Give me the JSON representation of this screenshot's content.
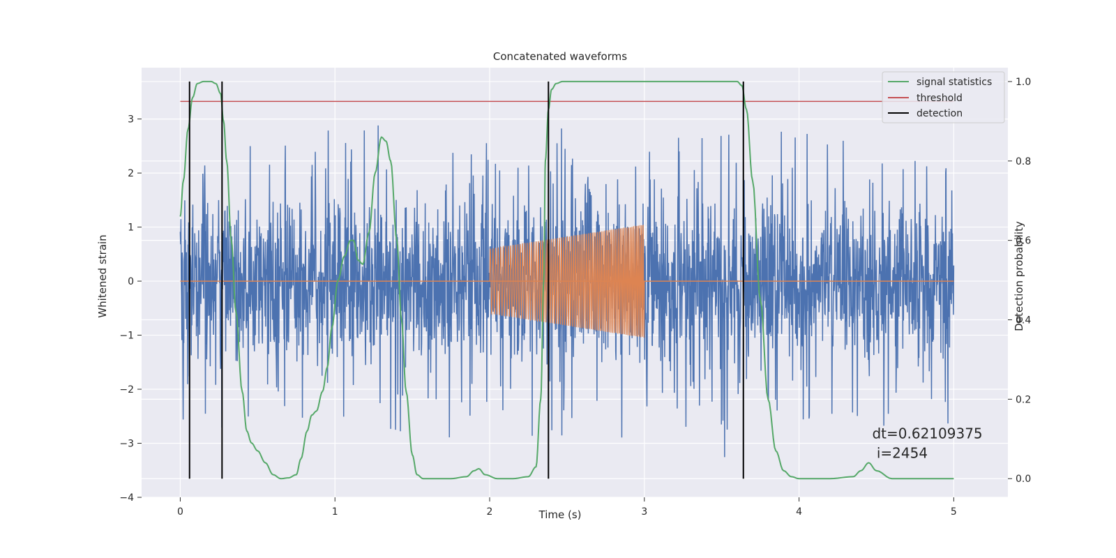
{
  "chart_data": {
    "type": "line",
    "title": "Concatenated waveforms",
    "xlabel": "Time (s)",
    "ylabel": "Whitened strain",
    "y2label": "Detection probability",
    "xlim": [
      -0.25,
      5.35
    ],
    "ylim": [
      -4.0,
      3.95
    ],
    "y2lim": [
      -0.047,
      1.035
    ],
    "xticks": [
      0,
      1,
      2,
      3,
      4,
      5
    ],
    "yticks": [
      -4,
      -3,
      -2,
      -1,
      0,
      1,
      2,
      3
    ],
    "y2ticks": [
      0.0,
      0.2,
      0.4,
      0.6,
      0.8,
      1.0
    ],
    "y2ticklabels": [
      "0.0",
      "0.2",
      "0.4",
      "0.6",
      "0.8",
      "1.0"
    ],
    "grid": true,
    "legend_position": "top-right",
    "legend": [
      {
        "label": "signal statistics",
        "color": "#55a868"
      },
      {
        "label": "threshold",
        "color": "#c44e52"
      },
      {
        "label": "detection",
        "color": "#000000"
      }
    ],
    "noise": {
      "name": "whitened strain",
      "color": "#4c72b0",
      "x_range": [
        0,
        5
      ],
      "std": 0.75,
      "typical_peak": 2.9,
      "max_peak": 3.6
    },
    "injected_signal": {
      "name": "injected waveform",
      "color": "#dd8452",
      "x_range": [
        2.0,
        3.0
      ],
      "amplitude_start": 0.6,
      "amplitude_end": 1.05,
      "zero_line": [
        0,
        5
      ]
    },
    "signal_statistics": {
      "axis": "y2",
      "x": [
        0.0,
        0.02,
        0.05,
        0.08,
        0.11,
        0.15,
        0.2,
        0.23,
        0.26,
        0.28,
        0.3,
        0.33,
        0.36,
        0.4,
        0.43,
        0.46,
        0.5,
        0.55,
        0.6,
        0.65,
        0.7,
        0.75,
        0.78,
        0.82,
        0.85,
        0.88,
        0.92,
        0.95,
        0.98,
        1.02,
        1.06,
        1.1,
        1.12,
        1.15,
        1.18,
        1.22,
        1.26,
        1.3,
        1.33,
        1.36,
        1.4,
        1.43,
        1.46,
        1.5,
        1.53,
        1.57,
        1.65,
        1.75,
        1.85,
        1.9,
        1.93,
        1.97,
        2.05,
        2.15,
        2.25,
        2.3,
        2.33,
        2.35,
        2.36,
        2.38,
        2.4,
        2.43,
        2.47,
        2.55,
        3.0,
        3.5,
        3.6,
        3.63,
        3.66,
        3.7,
        3.75,
        3.8,
        3.85,
        3.9,
        3.95,
        4.0,
        4.2,
        4.35,
        4.4,
        4.45,
        4.5,
        4.6,
        4.8,
        5.0
      ],
      "y": [
        0.66,
        0.75,
        0.88,
        0.96,
        0.995,
        1.0,
        1.0,
        0.995,
        0.97,
        0.9,
        0.8,
        0.6,
        0.42,
        0.22,
        0.12,
        0.09,
        0.07,
        0.04,
        0.01,
        0.0,
        0.002,
        0.01,
        0.05,
        0.12,
        0.16,
        0.17,
        0.22,
        0.28,
        0.38,
        0.5,
        0.56,
        0.6,
        0.6,
        0.55,
        0.54,
        0.62,
        0.77,
        0.86,
        0.85,
        0.8,
        0.6,
        0.4,
        0.22,
        0.06,
        0.01,
        0.0,
        0.0,
        0.0,
        0.005,
        0.02,
        0.025,
        0.01,
        0.0,
        0.0,
        0.005,
        0.03,
        0.2,
        0.5,
        0.8,
        0.93,
        0.98,
        0.995,
        1.0,
        1.0,
        1.0,
        1.0,
        1.0,
        0.99,
        0.93,
        0.75,
        0.45,
        0.2,
        0.07,
        0.02,
        0.005,
        0.0,
        0.0,
        0.005,
        0.02,
        0.04,
        0.02,
        0.0,
        0.0,
        0.0
      ]
    },
    "threshold": {
      "axis": "y2",
      "value": 0.95,
      "x_range": [
        0,
        5
      ]
    },
    "detections": {
      "axis": "y2",
      "x": [
        0.06,
        0.27,
        2.38,
        3.64
      ],
      "y_range": [
        0.0,
        1.0
      ]
    },
    "annotation": {
      "text_line1": "dt=0.62109375",
      "text_line2": " i=2454",
      "x": 4.5,
      "y": -3.0
    }
  }
}
